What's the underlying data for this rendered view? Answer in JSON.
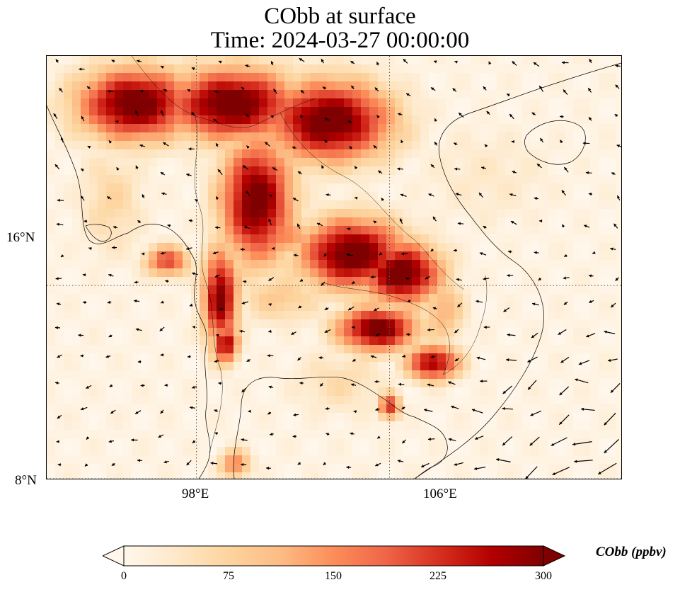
{
  "title": {
    "line1": "CObb at surface",
    "line2": "Time: 2024-03-27 00:00:00"
  },
  "map": {
    "extent_lon": [
      91.8,
      115.6
    ],
    "extent_lat": [
      8,
      25.5
    ],
    "projection": "PlateCarree",
    "gridlines": {
      "lon": [
        98,
        106
      ],
      "lat": [
        16,
        8
      ],
      "style": "dotted",
      "color": "#555555"
    },
    "lat_labels": [
      "16°N",
      "8°N"
    ],
    "lon_labels": [
      "98°E",
      "106°E"
    ],
    "field": {
      "variable": "CObb",
      "units": "ppbv",
      "colormap": "OrRd",
      "vmin": 0,
      "vmax": 300,
      "background_value": 10,
      "plumes": [
        {
          "lon": 95.5,
          "lat": 23.5,
          "rx": 2.6,
          "ry": 1.6,
          "value": 330
        },
        {
          "lon": 99.5,
          "lat": 23.5,
          "rx": 3.0,
          "ry": 1.6,
          "value": 330
        },
        {
          "lon": 103.5,
          "lat": 22.8,
          "rx": 2.8,
          "ry": 1.8,
          "value": 330
        },
        {
          "lon": 100.5,
          "lat": 19.5,
          "rx": 1.6,
          "ry": 2.8,
          "value": 320
        },
        {
          "lon": 104.5,
          "lat": 17.3,
          "rx": 2.4,
          "ry": 1.6,
          "value": 330
        },
        {
          "lon": 106.5,
          "lat": 16.5,
          "rx": 1.8,
          "ry": 1.4,
          "value": 330
        },
        {
          "lon": 105.5,
          "lat": 14.2,
          "rx": 1.8,
          "ry": 1.0,
          "value": 320
        },
        {
          "lon": 99.0,
          "lat": 15.5,
          "rx": 0.8,
          "ry": 2.2,
          "value": 300
        },
        {
          "lon": 99.2,
          "lat": 13.6,
          "rx": 0.6,
          "ry": 0.9,
          "value": 280
        },
        {
          "lon": 107.8,
          "lat": 12.8,
          "rx": 1.2,
          "ry": 0.8,
          "value": 280
        },
        {
          "lon": 106.0,
          "lat": 11.0,
          "rx": 0.5,
          "ry": 0.6,
          "value": 230
        },
        {
          "lon": 96.8,
          "lat": 17.0,
          "rx": 1.0,
          "ry": 0.7,
          "value": 210
        },
        {
          "lon": 101.5,
          "lat": 18.0,
          "rx": 1.8,
          "ry": 1.0,
          "value": 160
        },
        {
          "lon": 101.5,
          "lat": 15.5,
          "rx": 2.0,
          "ry": 1.2,
          "value": 90
        },
        {
          "lon": 108.2,
          "lat": 15.0,
          "rx": 1.0,
          "ry": 1.6,
          "value": 120
        },
        {
          "lon": 110.0,
          "lat": 20.5,
          "rx": 3.5,
          "ry": 2.5,
          "value": 35
        },
        {
          "lon": 94.5,
          "lat": 19.5,
          "rx": 1.5,
          "ry": 2.5,
          "value": 70
        },
        {
          "lon": 104.0,
          "lat": 12.0,
          "rx": 2.2,
          "ry": 1.5,
          "value": 60
        },
        {
          "lon": 99.6,
          "lat": 8.6,
          "rx": 0.7,
          "ry": 0.7,
          "value": 160
        }
      ]
    },
    "coastline_color": "#000000",
    "wind_vectors": {
      "color": "#000000",
      "grid_step_deg": 1.1,
      "description_direction": "mostly easterly/northeasterly flow, stronger over the South China Sea"
    }
  },
  "colorbar": {
    "ticks": [
      "0",
      "75",
      "150",
      "225",
      "300"
    ],
    "label": "CObb (ppbv)",
    "extend": "both"
  }
}
